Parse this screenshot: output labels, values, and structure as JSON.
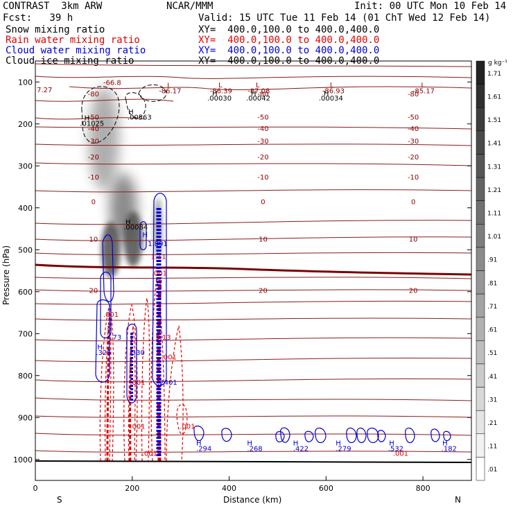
{
  "header": {
    "model": "CONTRAST  3km ARW",
    "center": "NCAR/MMM",
    "init": "Init: 00 UTC Mon 10 Feb 14",
    "fcst": "Fcst:   39 h",
    "valid": "Valid: 15 UTC Tue 11 Feb 14 (01 ChT Wed 12 Feb 14)"
  },
  "fields": [
    {
      "name": "Snow mixing ratio",
      "xy": "XY=  400.0,100.0 to 400.0,400.0",
      "color": "#000000"
    },
    {
      "name": "Rain water mixing ratio",
      "xy": "XY=  400.0,100.0 to 400.0,400.0",
      "color": "#e00000"
    },
    {
      "name": "Cloud water mixing ratio",
      "xy": "XY=  400.0,100.0 to 400.0,400.0",
      "color": "#0000d0"
    },
    {
      "name": "Cloud ice mixing ratio",
      "xy": "XY=  400.0,100.0 to 400.0,400.0",
      "color": "#000000"
    }
  ],
  "chart_data": {
    "type": "contour",
    "xlabel": "Distance (km)",
    "ylabel": "Pressure (hPa)",
    "xlim": [
      0,
      900
    ],
    "ylim": [
      1050,
      50
    ],
    "x_ticks": [
      0,
      200,
      400,
      600,
      800
    ],
    "y_ticks": [
      100,
      200,
      300,
      400,
      500,
      600,
      700,
      800,
      900,
      1000
    ],
    "x_end_labels": {
      "left": "S",
      "right": "N"
    },
    "colorbar": {
      "unit": "g kg⁻¹",
      "labels": [
        "1.71",
        "1.61",
        "1.51",
        "1.41",
        "1.31",
        "1.21",
        "1.11",
        "1.01",
        ".91",
        ".81",
        ".71",
        ".61",
        ".51",
        ".41",
        ".31",
        ".21",
        ".11",
        ".01"
      ]
    },
    "temperature_contours": [
      {
        "label": "-80",
        "p": 128
      },
      {
        "label": "-50",
        "p": 183
      },
      {
        "label": "-40",
        "p": 210
      },
      {
        "label": "-30",
        "p": 240
      },
      {
        "label": "-20",
        "p": 278
      },
      {
        "label": "-10",
        "p": 326
      },
      {
        "label": "0",
        "p": 385
      },
      {
        "label": "10",
        "p": 474
      },
      {
        "label": "20",
        "p": 596
      }
    ],
    "contour_labels": [
      {
        "text": "-66.8",
        "x": 140,
        "p": 100,
        "color": "#8b0000"
      },
      {
        "text": "7.27",
        "x": 3,
        "p": 118,
        "color": "#8b0000"
      },
      {
        "text": "L",
        "x": 272,
        "p": 107,
        "color": "#8b0000"
      },
      {
        "text": "-86.17",
        "x": 255,
        "p": 120,
        "color": "#8b0000"
      },
      {
        "text": "L",
        "x": 378,
        "p": 106,
        "color": "#8b0000"
      },
      {
        "text": "-86.39",
        "x": 360,
        "p": 120,
        "color": "#8b0000"
      },
      {
        "text": "L",
        "x": 455,
        "p": 106,
        "color": "#8b0000"
      },
      {
        "text": "-87.08",
        "x": 438,
        "p": 120,
        "color": "#8b0000"
      },
      {
        "text": "L",
        "x": 608,
        "p": 106,
        "color": "#8b0000"
      },
      {
        "text": "-86.93",
        "x": 592,
        "p": 120,
        "color": "#8b0000"
      },
      {
        "text": "L",
        "x": 796,
        "p": 106,
        "color": "#8b0000"
      },
      {
        "text": "-85.17",
        "x": 778,
        "p": 120,
        "color": "#8b0000"
      },
      {
        "text": "H",
        "x": 365,
        "p": 126,
        "color": "#000000"
      },
      {
        "text": ".00030",
        "x": 355,
        "p": 138,
        "color": "#000000"
      },
      {
        "text": "H",
        "x": 445,
        "p": 126,
        "color": "#000000"
      },
      {
        "text": ".00042",
        "x": 435,
        "p": 138,
        "color": "#000000"
      },
      {
        "text": "H",
        "x": 595,
        "p": 126,
        "color": "#000000"
      },
      {
        "text": ".00034",
        "x": 585,
        "p": 138,
        "color": "#000000"
      },
      {
        "text": "H",
        "x": 101,
        "p": 185,
        "color": "#000000"
      },
      {
        "text": ".01025",
        "x": 92,
        "p": 198,
        "color": "#000000"
      },
      {
        "text": "H",
        "x": 192,
        "p": 170,
        "color": "#000000"
      },
      {
        "text": ".00563",
        "x": 190,
        "p": 183,
        "color": "#000000"
      },
      {
        "text": "H",
        "x": 186,
        "p": 433,
        "color": "#000000"
      },
      {
        "text": ".00084",
        "x": 182,
        "p": 445,
        "color": "#000000"
      },
      {
        "text": "H",
        "x": 221,
        "p": 463,
        "color": "#0000d0"
      },
      {
        "text": "1.891",
        "x": 232,
        "p": 485,
        "color": "#0000d0"
      },
      {
        "text": "1.11",
        "x": 238,
        "p": 515,
        "color": "#e00000"
      },
      {
        "text": ".001",
        "x": 240,
        "p": 555,
        "color": "#e00000"
      },
      {
        "text": ".001",
        "x": 140,
        "p": 653,
        "color": "#e00000"
      },
      {
        "text": ".73",
        "x": 155,
        "p": 708,
        "color": "#0000d0"
      },
      {
        "text": "H",
        "x": 128,
        "p": 731,
        "color": "#0000d0"
      },
      {
        "text": ".325",
        "x": 125,
        "p": 744,
        "color": "#0000d0"
      },
      {
        "text": "5.13",
        "x": 248,
        "p": 708,
        "color": "#e00000"
      },
      {
        "text": ".001",
        "x": 260,
        "p": 755,
        "color": "#e00000"
      },
      {
        "text": ".530",
        "x": 194,
        "p": 744,
        "color": "#0000d0"
      },
      {
        "text": ".001",
        "x": 195,
        "p": 815,
        "color": "#e00000"
      },
      {
        "text": ".2401",
        "x": 252,
        "p": 815,
        "color": "#0000d0"
      },
      {
        "text": ".001",
        "x": 195,
        "p": 920,
        "color": "#e00000"
      },
      {
        "text": ".001",
        "x": 298,
        "p": 920,
        "color": "#e00000"
      },
      {
        "text": ".001",
        "x": 220,
        "p": 985,
        "color": "#e00000"
      },
      {
        "text": ".001",
        "x": 738,
        "p": 985,
        "color": "#e00000"
      },
      {
        "text": "H",
        "x": 332,
        "p": 960,
        "color": "#0000d0"
      },
      {
        "text": ".294",
        "x": 332,
        "p": 973,
        "color": "#0000d0"
      },
      {
        "text": "H",
        "x": 437,
        "p": 960,
        "color": "#0000d0"
      },
      {
        "text": ".268",
        "x": 437,
        "p": 973,
        "color": "#0000d0"
      },
      {
        "text": "H",
        "x": 532,
        "p": 960,
        "color": "#0000d0"
      },
      {
        "text": ".422",
        "x": 532,
        "p": 973,
        "color": "#0000d0"
      },
      {
        "text": "H",
        "x": 620,
        "p": 960,
        "color": "#0000d0"
      },
      {
        "text": ".279",
        "x": 620,
        "p": 973,
        "color": "#0000d0"
      },
      {
        "text": "H",
        "x": 730,
        "p": 960,
        "color": "#0000d0"
      },
      {
        "text": ".532",
        "x": 728,
        "p": 973,
        "color": "#0000d0"
      },
      {
        "text": "H",
        "x": 840,
        "p": 960,
        "color": "#0000d0"
      },
      {
        "text": ".182",
        "x": 838,
        "p": 973,
        "color": "#0000d0"
      }
    ]
  }
}
